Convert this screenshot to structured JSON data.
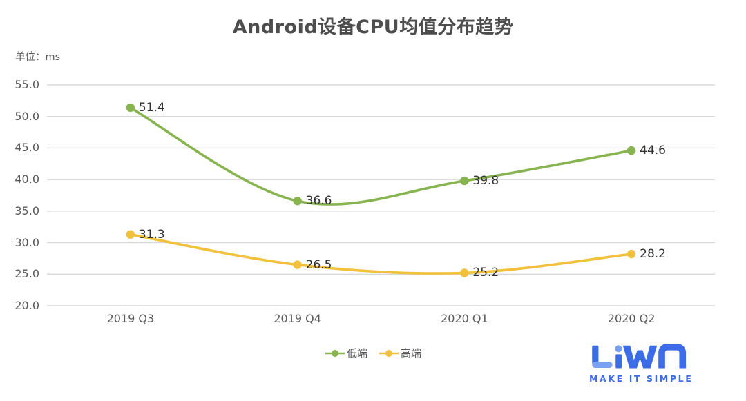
{
  "title": "Android设备CPU均值分布趋势",
  "unit_label": "单位：ms",
  "chart_data": {
    "type": "line",
    "smooth": true,
    "categories": [
      "2019 Q3",
      "2019 Q4",
      "2020 Q1",
      "2020 Q2"
    ],
    "series": [
      {
        "name": "低端",
        "color": "#87b44f",
        "values": [
          51.4,
          36.6,
          39.8,
          44.6
        ]
      },
      {
        "name": "高端",
        "color": "#f2c13c",
        "values": [
          31.3,
          26.5,
          25.2,
          28.2
        ]
      }
    ],
    "title": "Android设备CPU均值分布趋势",
    "xlabel": "",
    "ylabel": "单位：ms",
    "ylim": [
      20,
      55
    ],
    "yticks": [
      55,
      50,
      45,
      40,
      35,
      30,
      25,
      20
    ],
    "grid": true,
    "gridline_color": "#d8d8d8",
    "legend_position": "bottom",
    "data_label_color": "#303030"
  },
  "logo": {
    "name": "LiWA",
    "tagline": "MAKE IT SIMPLE",
    "color": "#3d6ce7",
    "light_color": "#7aa0f4"
  }
}
